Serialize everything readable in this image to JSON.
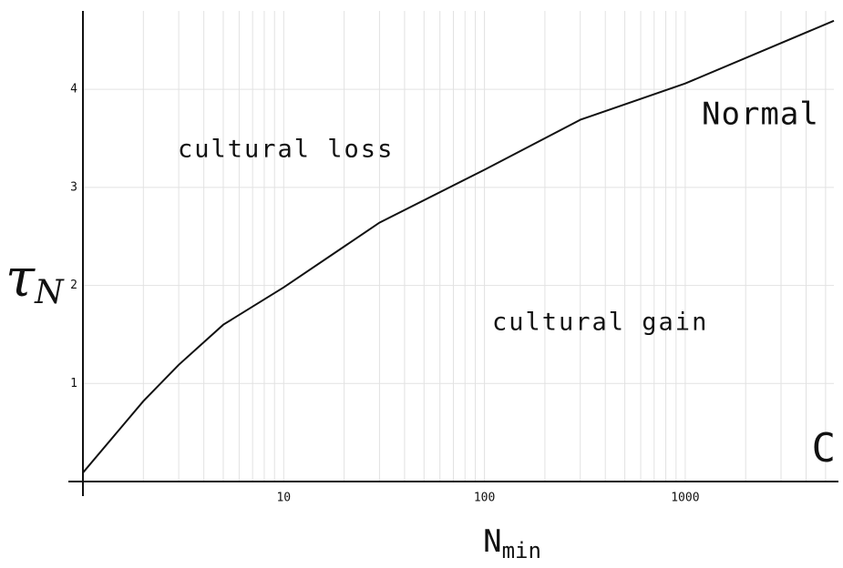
{
  "chart_data": {
    "type": "line",
    "x_label": {
      "main": "N",
      "sub": "min"
    },
    "y_label": {
      "main": "τ",
      "sub": "N"
    },
    "x": [
      1,
      2,
      3,
      5,
      10,
      30,
      100,
      300,
      1000,
      5500
    ],
    "values": [
      0.09,
      0.82,
      1.19,
      1.6,
      1.98,
      2.64,
      3.18,
      3.69,
      4.06,
      4.7
    ],
    "color": "#111111",
    "log_x": true,
    "xlim": [
      1,
      5500
    ],
    "ylim": [
      0,
      4.8
    ],
    "xticks": [
      10,
      100,
      1000
    ],
    "xminor": [
      2,
      3,
      4,
      5,
      6,
      7,
      8,
      9,
      20,
      30,
      40,
      50,
      60,
      70,
      80,
      90,
      200,
      300,
      400,
      500,
      600,
      700,
      800,
      900,
      2000,
      3000,
      4000,
      5000
    ],
    "yticks": [
      1,
      2,
      3,
      4
    ],
    "grid": true,
    "annotations": [
      "cultural loss",
      "cultural gain",
      "Normal",
      "C"
    ]
  }
}
